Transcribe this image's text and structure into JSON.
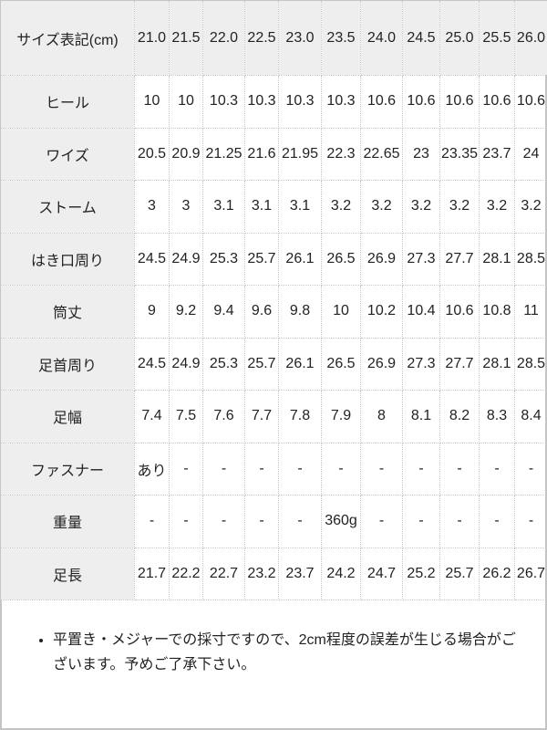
{
  "table": {
    "header": {
      "label": "サイズ表記(cm)",
      "values": [
        "21.0",
        "21.5",
        "22.0",
        "22.5",
        "23.0",
        "23.5",
        "24.0",
        "24.5",
        "25.0",
        "25.5",
        "26.0"
      ]
    },
    "rows": [
      {
        "label": "ヒール",
        "values": [
          "10",
          "10",
          "10.3",
          "10.3",
          "10.3",
          "10.3",
          "10.6",
          "10.6",
          "10.6",
          "10.6",
          "10.6"
        ]
      },
      {
        "label": "ワイズ",
        "values": [
          "20.5",
          "20.9",
          "21.25",
          "21.6",
          "21.95",
          "22.3",
          "22.65",
          "23",
          "23.35",
          "23.7",
          "24"
        ]
      },
      {
        "label": "ストーム",
        "values": [
          "3",
          "3",
          "3.1",
          "3.1",
          "3.1",
          "3.2",
          "3.2",
          "3.2",
          "3.2",
          "3.2",
          "3.2"
        ]
      },
      {
        "label": "はき口周り",
        "values": [
          "24.5",
          "24.9",
          "25.3",
          "25.7",
          "26.1",
          "26.5",
          "26.9",
          "27.3",
          "27.7",
          "28.1",
          "28.5"
        ]
      },
      {
        "label": "筒丈",
        "values": [
          "9",
          "9.2",
          "9.4",
          "9.6",
          "9.8",
          "10",
          "10.2",
          "10.4",
          "10.6",
          "10.8",
          "11"
        ]
      },
      {
        "label": "足首周り",
        "values": [
          "24.5",
          "24.9",
          "25.3",
          "25.7",
          "26.1",
          "26.5",
          "26.9",
          "27.3",
          "27.7",
          "28.1",
          "28.5"
        ]
      },
      {
        "label": "足幅",
        "values": [
          "7.4",
          "7.5",
          "7.6",
          "7.7",
          "7.8",
          "7.9",
          "8",
          "8.1",
          "8.2",
          "8.3",
          "8.4"
        ]
      },
      {
        "label": "ファスナー",
        "values": [
          "あり",
          "-",
          "-",
          "-",
          "-",
          "-",
          "-",
          "-",
          "-",
          "-",
          "-"
        ]
      },
      {
        "label": "重量",
        "values": [
          "-",
          "-",
          "-",
          "-",
          "-",
          "360g",
          "-",
          "-",
          "-",
          "-",
          "-"
        ]
      },
      {
        "label": "足長",
        "values": [
          "21.7",
          "22.2",
          "22.7",
          "23.2",
          "23.7",
          "24.2",
          "24.7",
          "25.2",
          "25.7",
          "26.2",
          "26.7"
        ]
      }
    ]
  },
  "note": "平置き・メジャーでの採寸ですので、2cm程度の誤差が生じる場合がございます。予めご了承下さい。"
}
